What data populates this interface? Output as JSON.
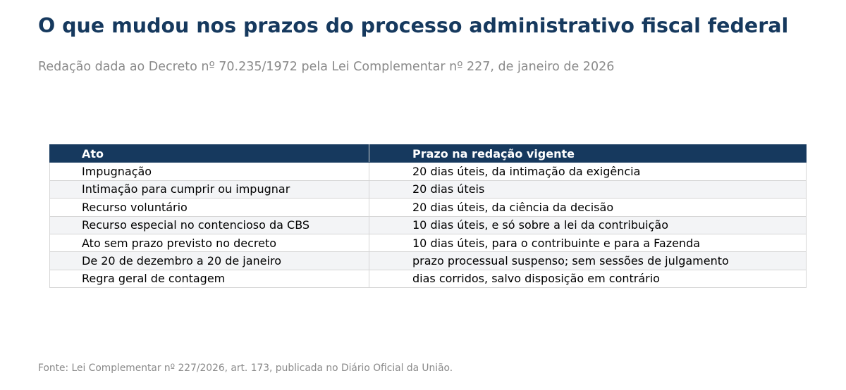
{
  "title": "O que mudou nos prazos do processo administrativo fiscal federal",
  "subtitle": "Redação dada ao Decreto nº 70.235/1972 pela Lei Complementar nº 227, de janeiro de 2026",
  "chart_data": {
    "type": "table",
    "columns": [
      "Ato",
      "Prazo na redação vigente"
    ],
    "rows": [
      [
        "Impugnação",
        "20 dias úteis, da intimação da exigência"
      ],
      [
        "Intimação para cumprir ou impugnar",
        "20 dias úteis"
      ],
      [
        "Recurso voluntário",
        "20 dias úteis, da ciência da decisão"
      ],
      [
        "Recurso especial no contencioso da CBS",
        "10 dias úteis, e só sobre a lei da contribuição"
      ],
      [
        "Ato sem prazo previsto no decreto",
        "10 dias úteis, para o contribuinte e para a Fazenda"
      ],
      [
        "De 20 de dezembro a 20 de janeiro",
        "prazo processual suspenso; sem sessões de julgamento"
      ],
      [
        "Regra geral de contagem",
        "dias corridos, salvo disposição em contrário"
      ]
    ],
    "header_color": "#16395e",
    "stripe_color": "#f3f4f6"
  },
  "source": "Fonte: Lei Complementar nº 227/2026, art. 173, publicada no Diário Oficial da União."
}
